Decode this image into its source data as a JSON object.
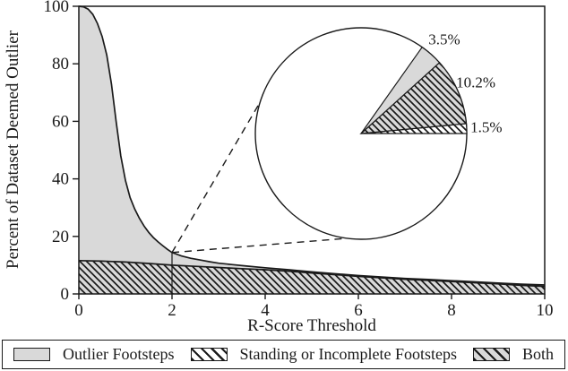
{
  "chart_data": {
    "type": "area",
    "title": "",
    "xlabel": "R-Score Threshold",
    "ylabel": "Percent of Dataset Deemed Outlier",
    "xlim": [
      0,
      10
    ],
    "ylim": [
      0,
      100
    ],
    "x_ticks": [
      "0",
      "2",
      "4",
      "6",
      "8",
      "10"
    ],
    "y_ticks": [
      "0",
      "20",
      "40",
      "60",
      "80",
      "100"
    ],
    "grid": false,
    "legend_position": "bottom",
    "series": [
      {
        "name": "Outlier Footsteps",
        "style": "solid-gray",
        "points": [
          [
            0,
            100
          ],
          [
            0.1,
            99.8
          ],
          [
            0.2,
            99
          ],
          [
            0.3,
            97.2
          ],
          [
            0.4,
            94
          ],
          [
            0.5,
            89.5
          ],
          [
            0.6,
            83
          ],
          [
            0.7,
            73
          ],
          [
            0.8,
            60
          ],
          [
            0.9,
            48
          ],
          [
            1,
            39.5
          ],
          [
            1.1,
            33.5
          ],
          [
            1.2,
            29.5
          ],
          [
            1.3,
            26.3
          ],
          [
            1.4,
            23.6
          ],
          [
            1.5,
            21.4
          ],
          [
            1.6,
            19.6
          ],
          [
            1.7,
            18.1
          ],
          [
            1.8,
            16.8
          ],
          [
            1.9,
            15.5
          ],
          [
            2,
            14.4
          ],
          [
            2.2,
            13.2
          ],
          [
            2.4,
            12.4
          ],
          [
            2.6,
            11.8
          ],
          [
            2.8,
            11.2
          ],
          [
            3,
            10.7
          ],
          [
            3.3,
            10.2
          ],
          [
            3.6,
            9.7
          ],
          [
            4,
            9.1
          ],
          [
            4.5,
            8.4
          ],
          [
            5,
            7.7
          ],
          [
            5.5,
            7
          ],
          [
            6,
            6.4
          ],
          [
            6.5,
            5.9
          ],
          [
            7,
            5.4
          ],
          [
            7.5,
            5
          ],
          [
            8,
            4.6
          ],
          [
            8.5,
            4.2
          ],
          [
            9,
            3.8
          ],
          [
            9.5,
            3.4
          ],
          [
            10,
            3.1
          ]
        ]
      },
      {
        "name": "Both",
        "style": "gray-hatch",
        "points": [
          [
            0,
            11.6
          ],
          [
            0.5,
            11.4
          ],
          [
            1,
            11.1
          ],
          [
            1.5,
            10.6
          ],
          [
            2,
            10
          ],
          [
            2.5,
            9.6
          ],
          [
            3,
            9.2
          ],
          [
            3.5,
            8.8
          ],
          [
            4,
            8.4
          ],
          [
            4.5,
            7.9
          ],
          [
            5,
            7.3
          ],
          [
            5.5,
            6.7
          ],
          [
            6,
            6.1
          ],
          [
            6.5,
            5.6
          ],
          [
            7,
            5.1
          ],
          [
            7.5,
            4.7
          ],
          [
            8,
            4.3
          ],
          [
            8.5,
            3.9
          ],
          [
            9,
            3.5
          ],
          [
            9.5,
            3
          ],
          [
            10,
            2.6
          ]
        ]
      }
    ],
    "marker": {
      "x": 2,
      "y_top": 14.4
    },
    "inset_pie": {
      "start_angle_deg": 0,
      "direction": "ccw",
      "slices": [
        {
          "label": "1.5%",
          "value": 1.5,
          "style": "white-hatch"
        },
        {
          "label": "10.2%",
          "value": 10.2,
          "style": "gray-hatch"
        },
        {
          "label": "3.5%",
          "value": 3.5,
          "style": "solid-gray"
        },
        {
          "label": "",
          "value": 84.8,
          "style": "none"
        }
      ]
    },
    "legend": {
      "items": [
        {
          "label": "Outlier Footsteps",
          "style": "solid-gray"
        },
        {
          "label": "Standing or Incomplete Footsteps",
          "style": "white-hatch"
        },
        {
          "label": "Both",
          "style": "gray-hatch"
        }
      ]
    },
    "colors": {
      "fill_gray": "#d9d9d9",
      "line": "#1a1a1a",
      "background": "#ffffff"
    }
  }
}
